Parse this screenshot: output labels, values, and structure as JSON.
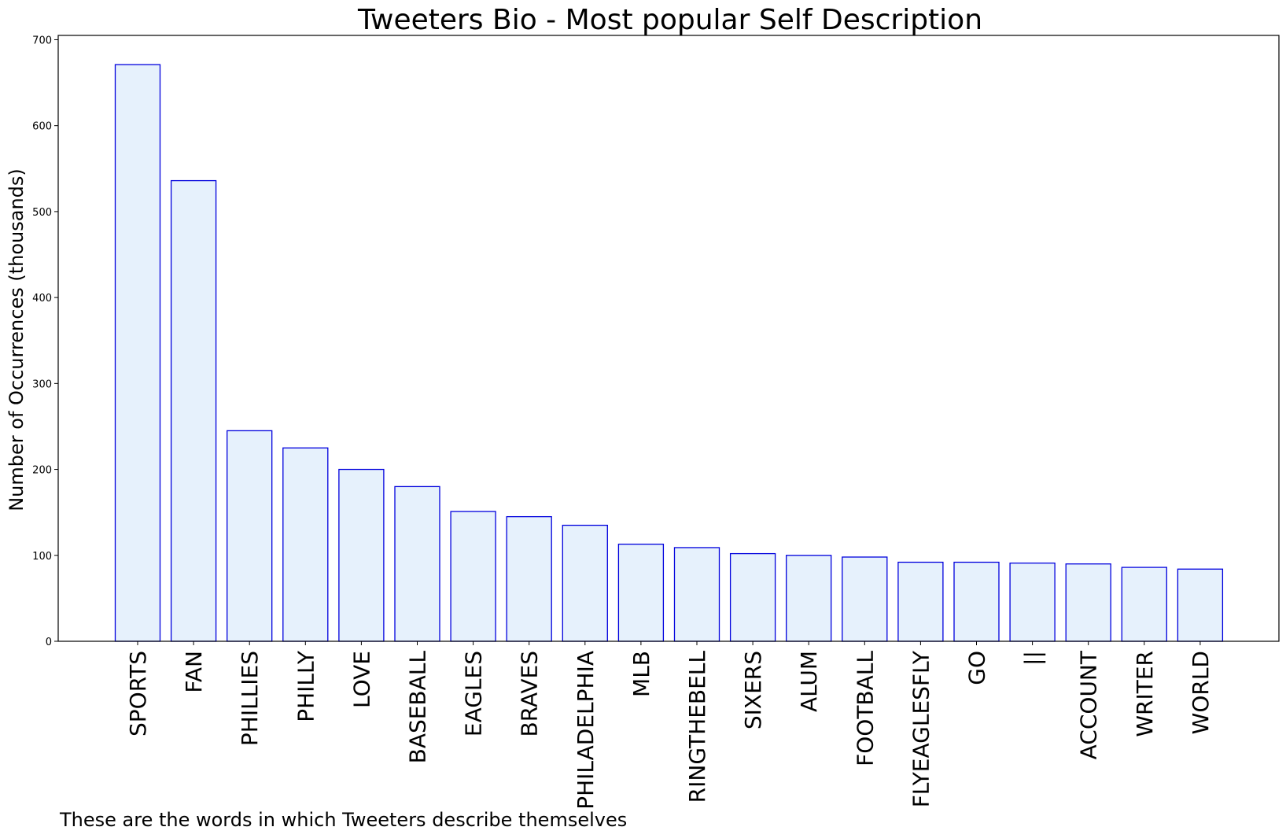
{
  "chart_data": {
    "type": "bar",
    "title": "Tweeters Bio - Most popular Self Description",
    "xlabel": "",
    "ylabel": "Number of Occurrences (thousands)",
    "caption": "These are the words in which Tweeters describe themselves",
    "ylim": [
      0,
      705
    ],
    "yticks": [
      0,
      100,
      200,
      300,
      400,
      500,
      600,
      700
    ],
    "categories": [
      "SPORTS",
      "FAN",
      "PHILLIES",
      "PHILLY",
      "LOVE",
      "BASEBALL",
      "EAGLES",
      "BRAVES",
      "PHILADELPHIA",
      "MLB",
      "RINGTHEBELL",
      "SIXERS",
      "ALUM",
      "FOOTBALL",
      "FLYEAGLESFLY",
      "GO",
      "||",
      "ACCOUNT",
      "WRITER",
      "WORLD"
    ],
    "values": [
      671,
      536,
      245,
      225,
      200,
      180,
      151,
      145,
      135,
      113,
      109,
      102,
      100,
      98,
      92,
      92,
      91,
      90,
      86,
      84
    ],
    "bar_fill": "#e6f1fc",
    "bar_edge": "#0000dd",
    "grid": false,
    "legend": "none"
  }
}
